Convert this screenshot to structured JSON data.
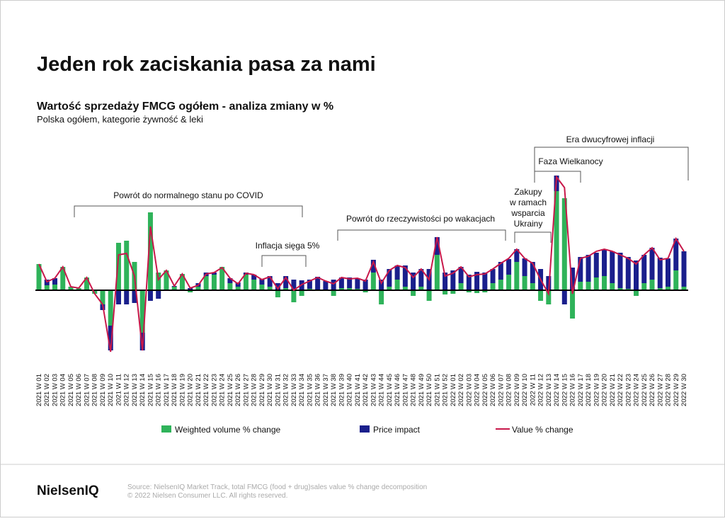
{
  "chart_data": {
    "type": "bar",
    "title": "Jeden rok zaciskania pasa za nami",
    "subtitle": "Wartość sprzedaży FMCG ogółem - analiza zmiany w %",
    "description": "Polska ogółem, kategorie żywność & leki",
    "stacked": true,
    "ylim": [
      -10,
      18
    ],
    "categories": [
      "2021 W 01",
      "2021 W 02",
      "2021 W 03",
      "2021 W 04",
      "2021 W 05",
      "2021 W 06",
      "2021 W 07",
      "2021 W 08",
      "2021 W 09",
      "2021 W 10",
      "2021 W 11",
      "2021 W 12",
      "2021 W 13",
      "2021 W 14",
      "2021 W 15",
      "2021 W 16",
      "2021 W 17",
      "2021 W 18",
      "2021 W 19",
      "2021 W 20",
      "2021 W 21",
      "2021 W 22",
      "2021 W 23",
      "2021 W 24",
      "2021 W 25",
      "2021 W 26",
      "2021 W 27",
      "2021 W 28",
      "2021 W 29",
      "2021 W 30",
      "2021 W 31",
      "2021 W 32",
      "2021 W 33",
      "2021 W 34",
      "2021 W 35",
      "2021 W 36",
      "2021 W 37",
      "2021 W 38",
      "2021 W 39",
      "2021 W 40",
      "2021 W 41",
      "2021 W 42",
      "2021 W 43",
      "2021 W 44",
      "2021 W 45",
      "2021 W 46",
      "2021 W 47",
      "2021 W 48",
      "2021 W 49",
      "2021 W 50",
      "2021 W 51",
      "2021 W 52",
      "2022 W 01",
      "2022 W 02",
      "2022 W 03",
      "2022 W 04",
      "2022 W 05",
      "2022 W 06",
      "2022 W 07",
      "2022 W 08",
      "2022 W 09",
      "2022 W 10",
      "2022 W 11",
      "2022 W 12",
      "2022 W 13",
      "2022 W 14",
      "2022 W 15",
      "2022 W 16",
      "2022 W 17",
      "2022 W 18",
      "2022 W 19",
      "2022 W 20",
      "2022 W 21",
      "2022 W 22",
      "2022 W 23",
      "2022 W 24",
      "2022 W 25",
      "2022 W 26",
      "2022 W 27",
      "2022 W 28",
      "2022 W 29",
      "2022 W 30"
    ],
    "series": [
      {
        "name": "Weighted volume % change",
        "color": "#2fb35a",
        "kind": "bar",
        "values": [
          3.7,
          0.7,
          0.8,
          3.3,
          0.5,
          0.3,
          1.8,
          -0.5,
          -2,
          -5,
          6.7,
          7,
          4,
          -6,
          11,
          2.5,
          2.8,
          0.5,
          2.3,
          -0.3,
          0.5,
          2,
          2.2,
          3.3,
          1,
          0.5,
          2.2,
          1.5,
          0.8,
          0.5,
          -1,
          0.3,
          -1.7,
          -0.8,
          0.2,
          0.1,
          0,
          -0.8,
          0.3,
          0.3,
          0.2,
          -0.3,
          2.5,
          -2,
          0.5,
          1.5,
          0.5,
          -0.8,
          0.5,
          -1.5,
          5,
          -0.6,
          -0.5,
          1,
          -0.3,
          -0.4,
          -0.3,
          1,
          1.5,
          2.2,
          4,
          2,
          1,
          -1.5,
          -2,
          14,
          13,
          -4,
          1.2,
          1.2,
          1.8,
          2,
          1,
          0.3,
          0.2,
          -0.8,
          1,
          1.5,
          0.3,
          0.5,
          2.8,
          0.5
        ]
      },
      {
        "name": "Price impact",
        "color": "#1a1f8c",
        "kind": "bar",
        "values": [
          0,
          0.8,
          0.9,
          0,
          0,
          0,
          0,
          0,
          -0.8,
          -3.5,
          -2,
          -2,
          -1.8,
          -2.5,
          -1.5,
          -1.2,
          0,
          0.1,
          0,
          0.3,
          0.5,
          0.5,
          0.3,
          0,
          0.7,
          0.6,
          0.3,
          0.7,
          0.8,
          1.5,
          1,
          1.7,
          1.5,
          1.4,
          1.3,
          1.8,
          1.3,
          1.5,
          1.5,
          1.5,
          1.5,
          1.5,
          1.8,
          1.5,
          2.5,
          2,
          3,
          2.5,
          2.5,
          3,
          2.5,
          2.5,
          2.8,
          2.3,
          2.2,
          2.6,
          2.5,
          2,
          2.5,
          2.2,
          1.8,
          2.5,
          3,
          3,
          2,
          2.2,
          -2,
          3.2,
          3.5,
          3.8,
          3.5,
          3.8,
          4.5,
          5,
          4.5,
          4.2,
          4,
          4.5,
          4.3,
          4,
          4.5,
          5
        ]
      },
      {
        "name": "Value % change",
        "color": "#c8184a",
        "kind": "line",
        "values": [
          3.7,
          1.2,
          1.7,
          3.3,
          0.5,
          0.3,
          1.8,
          -0.5,
          -2,
          -8.7,
          5,
          5.2,
          2,
          -8.5,
          9,
          1.5,
          2.8,
          0.6,
          2.3,
          0.3,
          0.7,
          2.3,
          2.5,
          3.2,
          1.7,
          0.9,
          2.4,
          2.2,
          1.5,
          1.9,
          0.2,
          1.8,
          0,
          0.8,
          1.3,
          1.8,
          1.3,
          0.9,
          1.8,
          1.6,
          1.7,
          1.3,
          4,
          1,
          2.8,
          3.5,
          3.2,
          1.8,
          3,
          1.5,
          7.5,
          2,
          2.4,
          3.3,
          1.9,
          2.2,
          2.3,
          3,
          3.8,
          4.5,
          5.8,
          4.5,
          3.8,
          1.5,
          -0.5,
          16,
          14.5,
          -0.5,
          4.5,
          4.8,
          5.5,
          5.8,
          5.5,
          5,
          4.5,
          3.7,
          5,
          6,
          4.3,
          4.5,
          7.3,
          5.5
        ]
      }
    ],
    "annotations": [
      {
        "text": "Powrót do normalnego stanu po COVID"
      },
      {
        "text": "Inflacja sięga 5%"
      },
      {
        "text": "Powrót do rzeczywistości po wakacjach"
      },
      {
        "lines": [
          "Zakupy",
          "w ramach",
          "wsparcia",
          "Ukrainy"
        ]
      },
      {
        "text": "Faza Wielkanocy"
      },
      {
        "text": "Era dwucyfrowej inflacji"
      }
    ]
  },
  "footer": {
    "brand": "NielsenIQ",
    "source": [
      "Source: NielsenIQ Market Track, total FMCG (food + drug)sales value % change decomposition",
      "© 2022 Nielsen Consumer LLC. All rights reserved."
    ]
  }
}
